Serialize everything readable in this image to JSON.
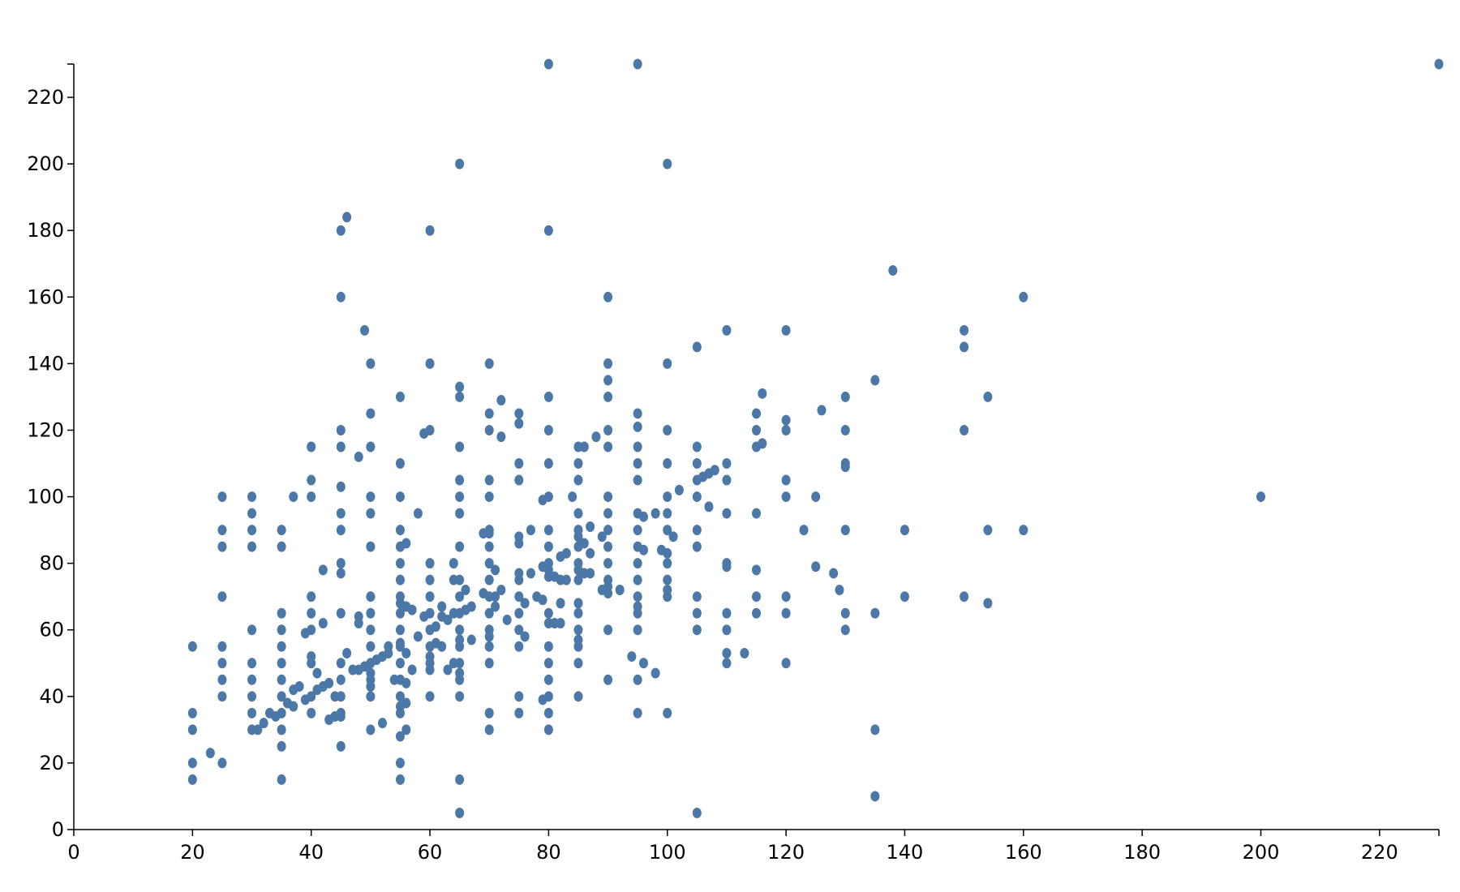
{
  "chart_data": {
    "type": "scatter",
    "color": "#4c78a8",
    "xlim": [
      0,
      230
    ],
    "ylim": [
      0,
      230
    ],
    "xticks": [
      0,
      20,
      40,
      60,
      80,
      100,
      120,
      140,
      160,
      180,
      200,
      220
    ],
    "yticks": [
      0,
      20,
      40,
      60,
      80,
      100,
      120,
      140,
      160,
      180,
      200,
      220
    ],
    "grid": false,
    "x": [
      20,
      20,
      20,
      20,
      20,
      23,
      25,
      25,
      25,
      25,
      25,
      25,
      25,
      25,
      25,
      30,
      30,
      30,
      30,
      30,
      30,
      30,
      30,
      30,
      30,
      31,
      32,
      33,
      34,
      35,
      35,
      35,
      35,
      35,
      35,
      35,
      35,
      35,
      35,
      35,
      35,
      36,
      37,
      37,
      37,
      38,
      39,
      39,
      40,
      40,
      40,
      40,
      40,
      40,
      40,
      40,
      40,
      40,
      41,
      41,
      42,
      42,
      42,
      43,
      43,
      44,
      44,
      45,
      45,
      45,
      45,
      45,
      45,
      45,
      45,
      45,
      45,
      45,
      45,
      45,
      45,
      45,
      45,
      46,
      46,
      47,
      48,
      48,
      48,
      48,
      49,
      49,
      50,
      50,
      50,
      50,
      50,
      50,
      50,
      50,
      50,
      50,
      50,
      50,
      50,
      50,
      50,
      50,
      51,
      52,
      52,
      53,
      53,
      54,
      55,
      55,
      55,
      55,
      55,
      55,
      55,
      55,
      55,
      55,
      55,
      55,
      55,
      55,
      55,
      55,
      55,
      55,
      55,
      55,
      55,
      56,
      56,
      56,
      56,
      56,
      56,
      57,
      57,
      58,
      58,
      59,
      59,
      60,
      60,
      60,
      60,
      60,
      60,
      60,
      60,
      60,
      60,
      60,
      60,
      60,
      61,
      61,
      62,
      62,
      62,
      63,
      63,
      64,
      64,
      64,
      64,
      65,
      65,
      65,
      65,
      65,
      65,
      65,
      65,
      65,
      65,
      65,
      65,
      65,
      65,
      65,
      65,
      65,
      65,
      65,
      65,
      66,
      66,
      67,
      67,
      69,
      69,
      70,
      70,
      70,
      70,
      70,
      70,
      70,
      70,
      70,
      70,
      70,
      70,
      70,
      70,
      70,
      70,
      70,
      70,
      71,
      71,
      71,
      72,
      72,
      72,
      73,
      75,
      75,
      75,
      75,
      75,
      75,
      75,
      75,
      75,
      75,
      75,
      75,
      75,
      75,
      76,
      76,
      77,
      77,
      78,
      79,
      79,
      79,
      79,
      80,
      80,
      80,
      80,
      80,
      80,
      80,
      80,
      80,
      80,
      80,
      80,
      80,
      80,
      80,
      80,
      80,
      80,
      80,
      81,
      81,
      82,
      82,
      82,
      82,
      83,
      83,
      84,
      85,
      85,
      85,
      85,
      85,
      85,
      85,
      85,
      85,
      85,
      85,
      85,
      85,
      85,
      85,
      85,
      85,
      86,
      86,
      86,
      87,
      87,
      87,
      88,
      89,
      89,
      90,
      90,
      90,
      90,
      90,
      90,
      90,
      90,
      90,
      90,
      90,
      90,
      90,
      90,
      90,
      90,
      92,
      94,
      95,
      95,
      95,
      95,
      95,
      95,
      95,
      95,
      95,
      95,
      95,
      95,
      95,
      95,
      95,
      95,
      95,
      96,
      96,
      96,
      98,
      98,
      99,
      100,
      100,
      100,
      100,
      100,
      100,
      100,
      100,
      100,
      100,
      100,
      100,
      100,
      101,
      102,
      105,
      105,
      105,
      105,
      105,
      105,
      105,
      105,
      105,
      105,
      105,
      106,
      107,
      107,
      108,
      110,
      110,
      110,
      110,
      110,
      110,
      110,
      110,
      110,
      110,
      113,
      115,
      115,
      115,
      115,
      115,
      115,
      115,
      116,
      116,
      120,
      120,
      120,
      120,
      120,
      120,
      120,
      120,
      123,
      125,
      125,
      126,
      128,
      129,
      130,
      130,
      130,
      130,
      130,
      130,
      130,
      135,
      135,
      135,
      135,
      138,
      140,
      140,
      150,
      150,
      150,
      150,
      154,
      154,
      154,
      160,
      160,
      200,
      230
    ],
    "values": [
      55,
      35,
      30,
      20,
      15,
      23,
      100,
      90,
      85,
      70,
      55,
      50,
      45,
      40,
      20,
      100,
      95,
      90,
      85,
      60,
      50,
      45,
      40,
      35,
      30,
      30,
      32,
      35,
      34,
      90,
      85,
      65,
      60,
      55,
      50,
      45,
      40,
      35,
      30,
      25,
      15,
      38,
      42,
      37,
      100,
      43,
      59,
      39,
      115,
      105,
      100,
      70,
      65,
      60,
      52,
      50,
      40,
      35,
      47,
      42,
      78,
      62,
      43,
      44,
      33,
      40,
      34,
      180,
      160,
      120,
      115,
      103,
      95,
      90,
      80,
      77,
      65,
      50,
      45,
      40,
      35,
      34,
      25,
      184,
      53,
      48,
      112,
      64,
      62,
      48,
      150,
      49,
      140,
      125,
      115,
      100,
      95,
      85,
      70,
      65,
      60,
      55,
      50,
      47,
      45,
      43,
      40,
      30,
      51,
      52,
      32,
      55,
      53,
      45,
      130,
      110,
      100,
      90,
      85,
      80,
      75,
      70,
      68,
      65,
      60,
      56,
      55,
      50,
      45,
      40,
      37,
      35,
      28,
      20,
      15,
      86,
      67,
      53,
      44,
      38,
      30,
      66,
      48,
      95,
      58,
      119,
      64,
      180,
      140,
      120,
      80,
      75,
      70,
      65,
      60,
      55,
      52,
      50,
      48,
      40,
      56,
      61,
      67,
      64,
      55,
      48,
      63,
      80,
      75,
      65,
      50,
      200,
      133,
      130,
      115,
      105,
      100,
      95,
      85,
      75,
      70,
      65,
      60,
      57,
      55,
      50,
      47,
      45,
      40,
      15,
      5,
      72,
      66,
      67,
      57,
      89,
      71,
      140,
      125,
      120,
      105,
      100,
      90,
      89,
      85,
      80,
      75,
      70,
      65,
      60,
      58,
      55,
      50,
      35,
      30,
      78,
      70,
      67,
      129,
      118,
      72,
      63,
      125,
      122,
      110,
      105,
      88,
      86,
      77,
      75,
      70,
      65,
      60,
      55,
      40,
      35,
      68,
      58,
      90,
      77,
      70,
      99,
      79,
      69,
      39,
      230,
      180,
      130,
      120,
      110,
      100,
      90,
      85,
      80,
      78,
      76,
      65,
      62,
      55,
      50,
      45,
      40,
      35,
      30,
      76,
      62,
      82,
      75,
      68,
      62,
      83,
      75,
      100,
      115,
      110,
      105,
      95,
      90,
      88,
      85,
      80,
      78,
      75,
      68,
      65,
      60,
      57,
      55,
      50,
      40,
      115,
      86,
      77,
      91,
      83,
      77,
      118,
      88,
      72,
      160,
      140,
      135,
      130,
      120,
      115,
      100,
      95,
      90,
      85,
      80,
      75,
      73,
      71,
      60,
      45,
      72,
      52,
      230,
      125,
      121,
      115,
      110,
      105,
      95,
      90,
      85,
      80,
      75,
      70,
      67,
      65,
      60,
      45,
      35,
      94,
      84,
      50,
      95,
      47,
      84,
      200,
      140,
      120,
      110,
      100,
      95,
      90,
      83,
      80,
      75,
      72,
      70,
      35,
      88,
      102,
      145,
      115,
      110,
      105,
      100,
      90,
      85,
      70,
      65,
      60,
      5,
      106,
      107,
      97,
      108,
      150,
      110,
      105,
      95,
      80,
      79,
      65,
      60,
      53,
      50,
      53,
      125,
      120,
      115,
      95,
      78,
      70,
      65,
      131,
      116,
      150,
      123,
      120,
      105,
      100,
      70,
      65,
      50,
      90,
      100,
      79,
      126,
      77,
      72,
      130,
      120,
      110,
      109,
      90,
      65,
      60,
      135,
      65,
      30,
      10,
      168,
      90,
      70,
      150,
      145,
      120,
      70,
      130,
      90,
      68,
      160,
      90,
      100,
      230
    ]
  }
}
